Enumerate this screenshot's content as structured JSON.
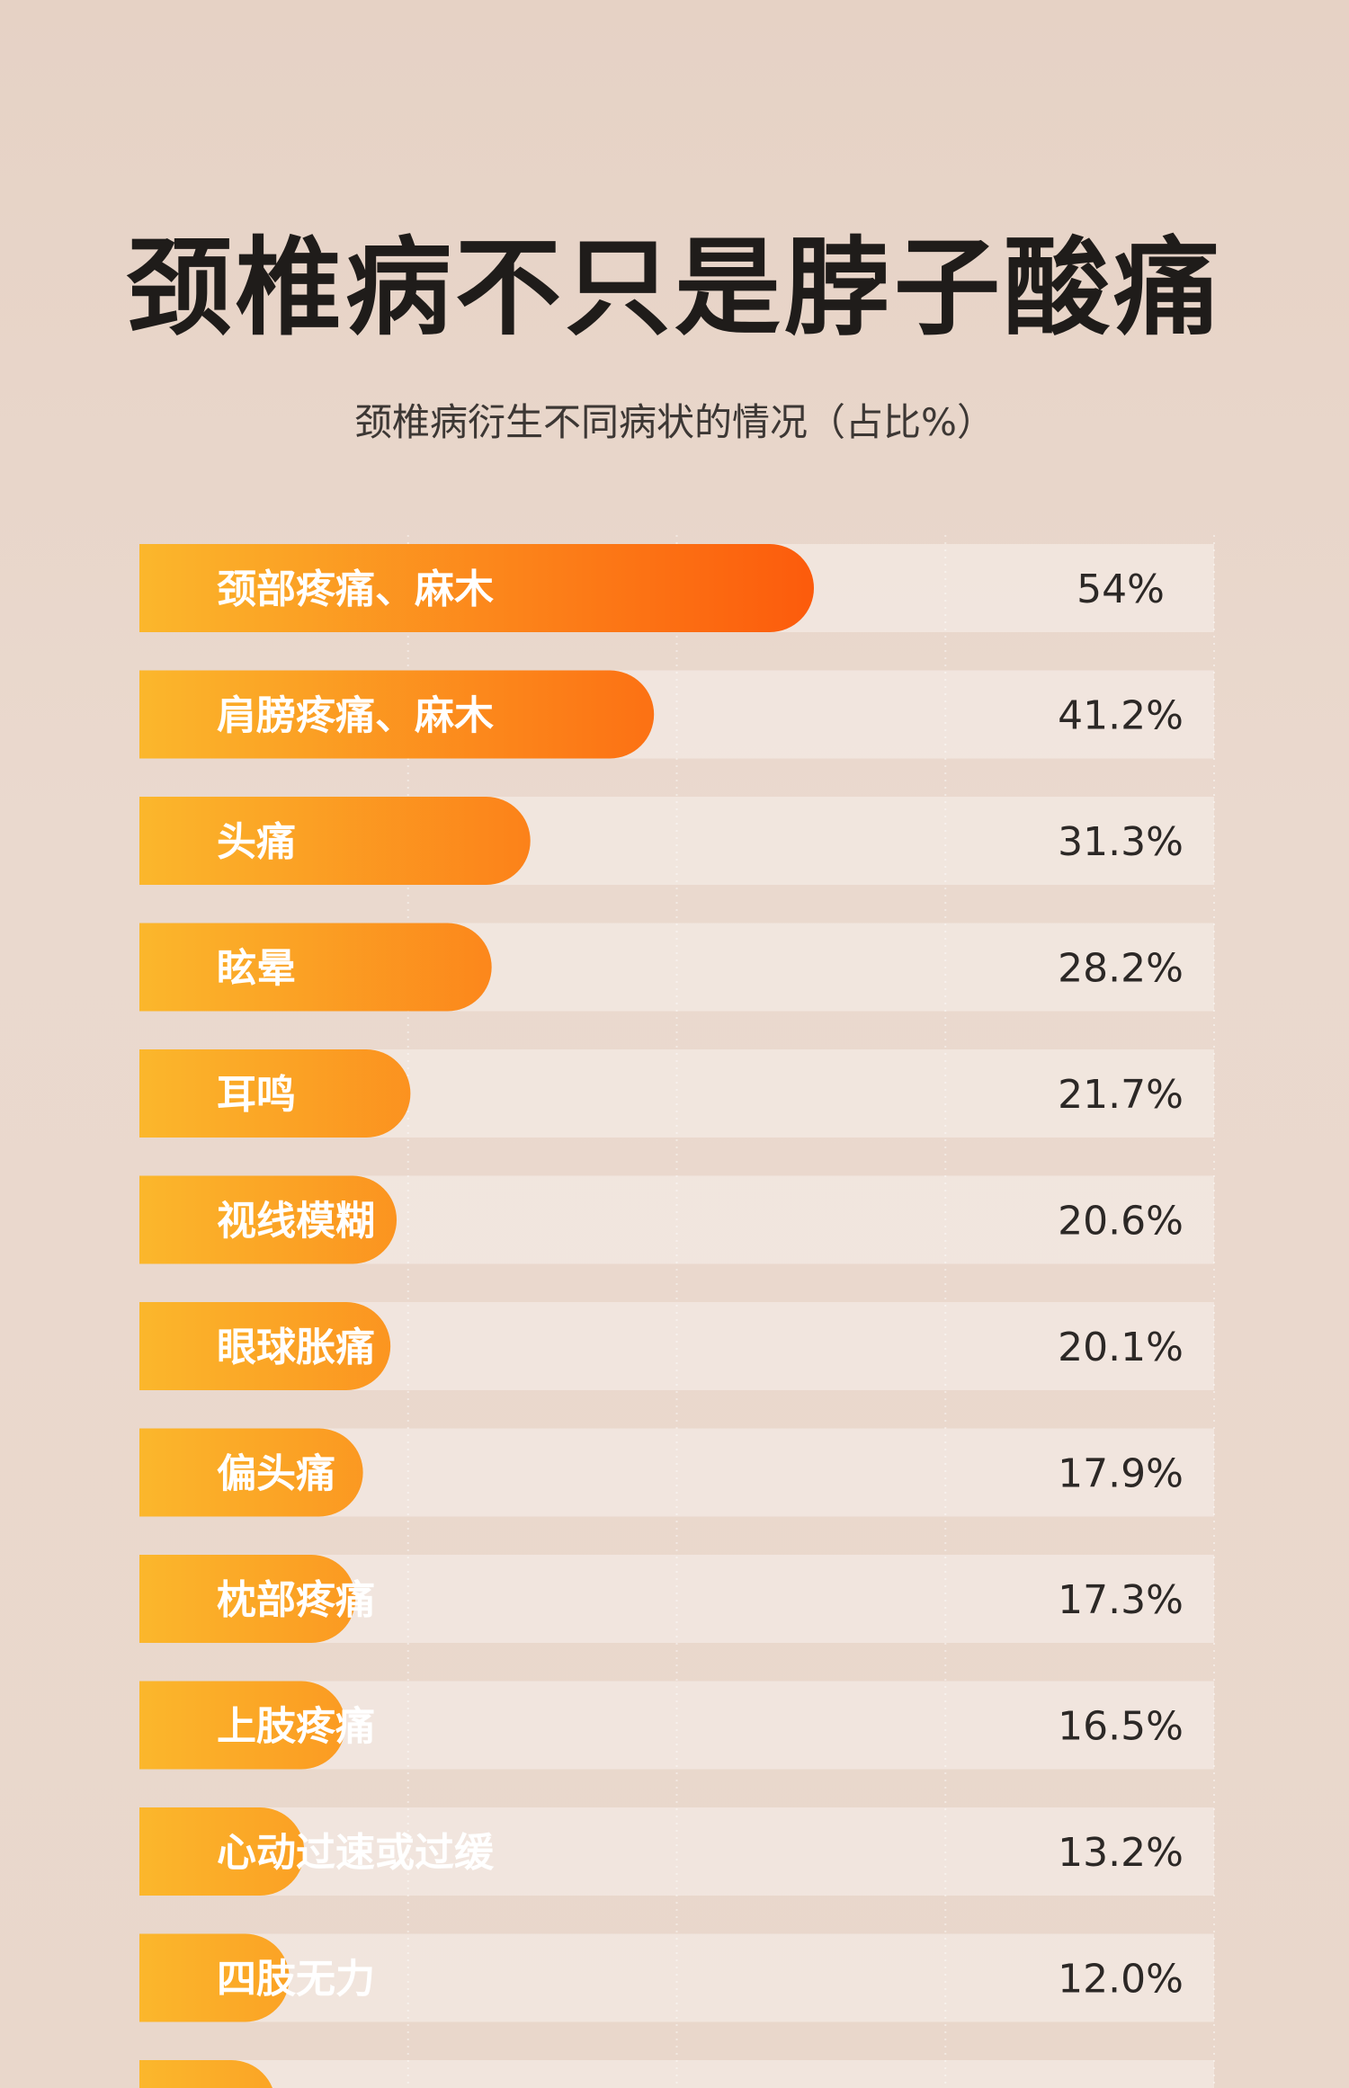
{
  "chart_data": {
    "type": "bar",
    "orientation": "horizontal",
    "title": "颈椎病不只是脖子酸痛",
    "subtitle": "颈椎病衍生不同病状的情况（占比%）",
    "categories": [
      "颈部疼痛、麻木",
      "肩膀疼痛、麻木",
      "头痛",
      "眩晕",
      "耳鸣",
      "视线模糊",
      "眼球胀痛",
      "偏头痛",
      "枕部疼痛",
      "上肢疼痛",
      "心动过速或过缓",
      "四肢无力",
      ""
    ],
    "values": [
      54,
      41.2,
      31.3,
      28.2,
      21.7,
      20.6,
      20.1,
      17.9,
      17.3,
      16.5,
      13.2,
      12.0,
      10.9
    ],
    "value_labels": [
      "54%",
      "41.2%",
      "31.3%",
      "28.2%",
      "21.7%",
      "20.6%",
      "20.1%",
      "17.9%",
      "17.3%",
      "16.5%",
      "13.2%",
      "12.0%",
      ""
    ],
    "xlim": [
      0,
      100
    ],
    "grid": true,
    "colors": {
      "bar_start": "#fbb72c",
      "bar_end": "#fc5b0c",
      "track": "#f2e7e0",
      "text_dark": "#2c2826"
    }
  }
}
